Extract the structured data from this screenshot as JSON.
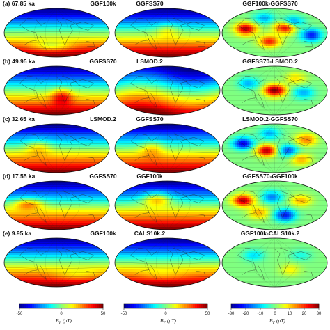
{
  "figure": {
    "rows": [
      {
        "label": "(a) 67.85 ka",
        "panels": [
          {
            "title": "GGF100k",
            "kind": "field",
            "variant": 0
          },
          {
            "title": "GGFSS70",
            "kind": "field",
            "variant": 1
          },
          {
            "title": "GGF100k-GGFSS70",
            "kind": "diff",
            "variant": 0
          }
        ]
      },
      {
        "label": "(b) 49.95 ka",
        "panels": [
          {
            "title": "GGFSS70",
            "kind": "field",
            "variant": 2
          },
          {
            "title": "LSMOD.2",
            "kind": "field",
            "variant": 3
          },
          {
            "title": "GGFSS70-LSMOD.2",
            "kind": "diff",
            "variant": 1
          }
        ]
      },
      {
        "label": "(c) 32.65 ka",
        "panels": [
          {
            "title": "LSMOD.2",
            "kind": "field",
            "variant": 4
          },
          {
            "title": "GGFSS70",
            "kind": "field",
            "variant": 5
          },
          {
            "title": "LSMOD.2-GGFSS70",
            "kind": "diff",
            "variant": 2
          }
        ]
      },
      {
        "label": "(d) 17.55 ka",
        "panels": [
          {
            "title": "GGFSS70",
            "kind": "field",
            "variant": 6
          },
          {
            "title": "GGF100k",
            "kind": "field",
            "variant": 7
          },
          {
            "title": "GGFSS70-GGF100k",
            "kind": "diff",
            "variant": 3
          }
        ]
      },
      {
        "label": "(e) 9.95 ka",
        "panels": [
          {
            "title": "GGF100k",
            "kind": "field",
            "variant": 8
          },
          {
            "title": "CALS10k.2",
            "kind": "field",
            "variant": 9
          },
          {
            "title": "GGF100k-CALS10k.2",
            "kind": "diff",
            "variant": 4
          }
        ]
      }
    ],
    "colorbars": [
      {
        "ticks": [
          "-50",
          "0",
          "50"
        ],
        "label_main": "B",
        "label_sub": "r",
        "label_unit": "(μT)",
        "range": [
          -50,
          50
        ]
      },
      {
        "ticks": [
          "-50",
          "0",
          "50"
        ],
        "label_main": "B",
        "label_sub": "r",
        "label_unit": "(μT)",
        "range": [
          -50,
          50
        ]
      },
      {
        "ticks": [
          "-30",
          "-20",
          "-10",
          "0",
          "10",
          "20",
          "30"
        ],
        "label_main": "B",
        "label_sub": "r",
        "label_unit": "(μT)",
        "range": [
          -30,
          30
        ]
      }
    ],
    "colormap": [
      "#00008f",
      "#0000ff",
      "#0080ff",
      "#00ffff",
      "#80ff80",
      "#ffff00",
      "#ff8000",
      "#ff0000",
      "#800000"
    ]
  }
}
